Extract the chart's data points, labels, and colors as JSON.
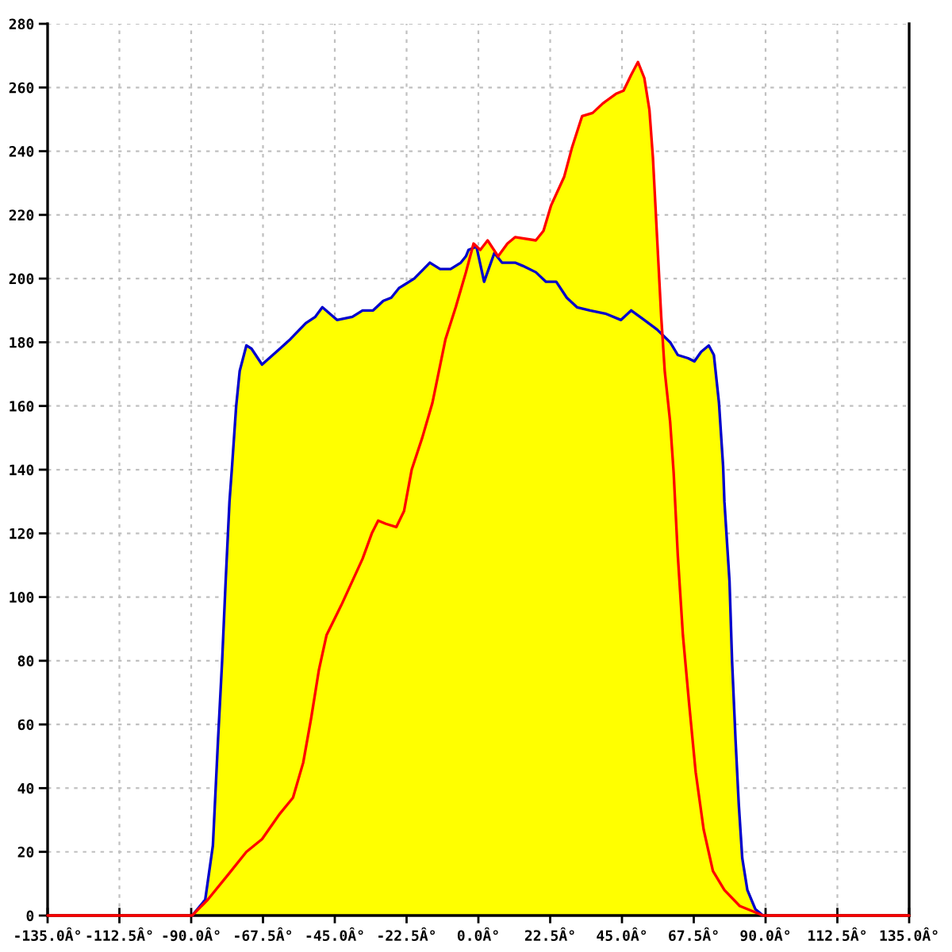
{
  "chart_data": {
    "type": "line",
    "xlim": [
      -135,
      135
    ],
    "xticks": [
      {
        "value": -135,
        "label": "-135.0Â°"
      },
      {
        "value": -112.5,
        "label": "-112.5Â°"
      },
      {
        "value": -90,
        "label": "-90.0Â°"
      },
      {
        "value": -67.5,
        "label": "-67.5Â°"
      },
      {
        "value": -45,
        "label": "-45.0Â°"
      },
      {
        "value": -22.5,
        "label": "-22.5Â°"
      },
      {
        "value": 0,
        "label": "0.0Â°"
      },
      {
        "value": 22.5,
        "label": "22.5Â°"
      },
      {
        "value": 45,
        "label": "45.0Â°"
      },
      {
        "value": 67.5,
        "label": "67.5Â°"
      },
      {
        "value": 90,
        "label": "90.0Â°"
      },
      {
        "value": 112.5,
        "label": "112.5Â°"
      },
      {
        "value": 135,
        "label": "135.0Â°"
      }
    ],
    "ylim": [
      0,
      280
    ],
    "yticks": [
      0,
      20,
      40,
      60,
      80,
      100,
      120,
      140,
      160,
      180,
      200,
      220,
      240,
      260,
      280
    ],
    "grid": true,
    "series": [
      {
        "color": "#0000cc",
        "x": [
          -89.7,
          -85.6,
          -83.2,
          -81.6,
          -80.3,
          -79.2,
          -78,
          -77.2,
          -75.9,
          -74.8,
          -72.7,
          -71.1,
          -67.8,
          -62.2,
          -58.9,
          -54.1,
          -51.1,
          -48.9,
          -44.3,
          -39.5,
          -36.3,
          -33,
          -29.8,
          -27.3,
          -24.9,
          -20.1,
          -15.2,
          -12,
          -8.7,
          -5.5,
          -3.9,
          -3.1,
          -0.6,
          1.8,
          5,
          7.4,
          11.5,
          13.9,
          18,
          21.2,
          24.4,
          27.7,
          30.9,
          35,
          39.8,
          44.7,
          47.9,
          52,
          56,
          60.1,
          62.5,
          65.7,
          67.7,
          69.8,
          72.2,
          73.8,
          75.4,
          76.7,
          77.1,
          78.7,
          79.5,
          80.6,
          81.6,
          82.7,
          84.3,
          86.8,
          89.2
        ],
        "values": [
          0,
          5,
          22,
          55,
          80,
          105,
          130,
          141,
          160,
          171,
          179,
          178,
          173,
          178,
          181,
          186,
          188,
          191,
          187,
          188,
          190,
          190,
          193,
          194,
          197,
          200,
          205,
          203,
          203,
          205,
          207,
          209,
          210,
          199,
          208,
          205,
          205,
          204,
          202,
          199,
          199,
          194,
          191,
          190,
          189,
          187,
          190,
          187,
          184,
          180,
          176,
          175,
          174,
          177,
          179,
          176,
          161,
          141,
          130,
          105,
          80,
          55,
          35,
          18,
          8,
          2,
          0
        ]
      },
      {
        "color": "#ff0000",
        "x": [
          -135,
          -89.7,
          -84.8,
          -78.3,
          -72.7,
          -67.8,
          -62.2,
          -58.1,
          -54.9,
          -52.4,
          -50,
          -47.6,
          -42.7,
          -36.3,
          -33.4,
          -31.4,
          -29,
          -25.7,
          -23.3,
          -20.9,
          -17.6,
          -14.4,
          -10.3,
          -7.1,
          -3.9,
          -1.5,
          0.6,
          2.9,
          6.2,
          9.1,
          11.5,
          18,
          20.4,
          22.8,
          26.9,
          29.3,
          32.5,
          35.8,
          39,
          43.1,
          45.5,
          47.9,
          50,
          52,
          53.6,
          54.7,
          56,
          57.3,
          58.4,
          60.1,
          61.2,
          62.5,
          64.1,
          66,
          68.1,
          70.6,
          73.5,
          77.1,
          81.9,
          86.8,
          89.2,
          135
        ],
        "values": [
          0,
          0,
          5,
          13,
          20,
          24,
          32,
          37,
          48,
          62,
          77,
          88,
          98,
          112,
          120,
          124,
          123,
          122,
          127,
          140,
          150,
          161,
          181,
          191,
          202,
          211,
          209,
          212,
          207,
          211,
          213,
          212,
          215,
          223,
          232,
          241,
          251,
          252,
          255,
          258,
          259,
          264,
          268,
          263,
          253,
          238,
          213,
          188,
          171,
          155,
          139,
          113,
          88,
          67,
          45,
          27,
          14,
          8,
          3,
          1,
          0,
          0
        ]
      },
      {
        "type": "area",
        "color": "#ffff00",
        "x": [
          -89.7,
          -85.6,
          -83.2,
          -81.6,
          -80.3,
          -79.2,
          -78,
          -77.2,
          -75.9,
          -74.8,
          -72.7,
          -71.1,
          -67.8,
          -62.2,
          -58.9,
          -54.1,
          -51.1,
          -48.9,
          -44.3,
          -39.5,
          -36.3,
          -33,
          -29.8,
          -27.3,
          -24.9,
          -20.1,
          -15.2,
          -12,
          -8.7,
          -5.5,
          -3.9,
          -3.1,
          -2.2,
          -1.5,
          0.6,
          2.9,
          6.2,
          9.1,
          11.5,
          18,
          20.4,
          22.8,
          26.9,
          29.3,
          32.5,
          35.8,
          39,
          43.1,
          45.5,
          47.9,
          50,
          52,
          53.6,
          54.7,
          56,
          57.3,
          57.8,
          60.1,
          62.5,
          65.7,
          67.7,
          69.8,
          72.2,
          73.8,
          75.4,
          76.7,
          77.1,
          78.7,
          79.5,
          80.6,
          81.6,
          82.7,
          84.3,
          86.8,
          89.2
        ],
        "values": [
          0,
          5,
          22,
          55,
          80,
          105,
          130,
          141,
          160,
          171,
          179,
          178,
          173,
          178,
          181,
          186,
          188,
          191,
          187,
          188,
          190,
          190,
          193,
          194,
          197,
          200,
          205,
          203,
          203,
          205,
          207,
          209,
          210,
          211,
          209,
          212,
          207,
          211,
          213,
          212,
          215,
          223,
          232,
          241,
          251,
          252,
          255,
          258,
          259,
          264,
          268,
          263,
          253,
          238,
          213,
          188,
          182,
          180,
          176,
          175,
          174,
          177,
          179,
          176,
          161,
          141,
          130,
          105,
          80,
          55,
          35,
          18,
          8,
          2,
          0
        ]
      }
    ]
  }
}
